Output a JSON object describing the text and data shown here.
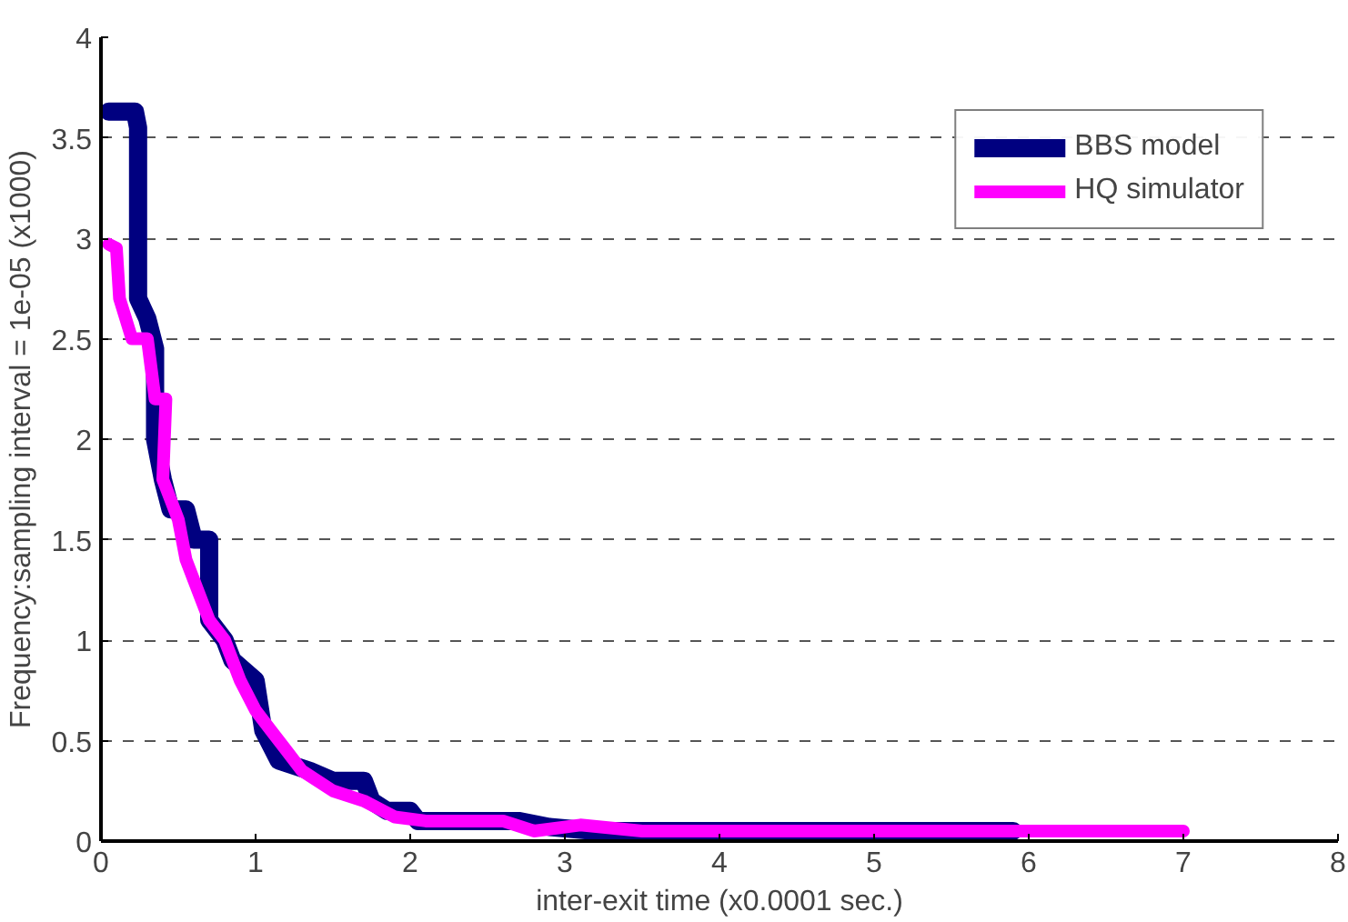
{
  "chart_data": {
    "type": "line",
    "xlabel": "inter-exit time (x0.0001 sec.)",
    "ylabel": "Frequency:sampling interval = 1e-05 (x1000)",
    "xlim": [
      0,
      8
    ],
    "xticks": [
      0,
      1,
      2,
      3,
      4,
      5,
      6,
      7,
      8
    ],
    "ylim": [
      0,
      4
    ],
    "yticks": [
      0,
      0.5,
      1,
      1.5,
      2,
      2.5,
      3,
      3.5,
      4
    ],
    "grid": "y",
    "legend": "top right",
    "line_style": "solid",
    "marker": "none",
    "series": [
      {
        "name": "BBS model",
        "color": "#000080",
        "x": [
          0.05,
          0.22,
          0.24,
          0.24,
          0.3,
          0.35,
          0.35,
          0.4,
          0.45,
          0.55,
          0.6,
          0.7,
          0.7,
          0.8,
          0.85,
          1.0,
          1.05,
          1.15,
          1.35,
          1.5,
          1.7,
          1.75,
          1.85,
          2.0,
          2.05,
          2.7,
          2.9,
          3.2,
          3.5,
          5.9
        ],
        "values": [
          3.63,
          3.63,
          3.55,
          2.7,
          2.6,
          2.45,
          2.0,
          1.8,
          1.65,
          1.65,
          1.5,
          1.5,
          1.1,
          1.0,
          0.9,
          0.8,
          0.55,
          0.4,
          0.35,
          0.3,
          0.3,
          0.2,
          0.15,
          0.15,
          0.1,
          0.1,
          0.07,
          0.05,
          0.05,
          0.05
        ]
      },
      {
        "name": "HQ simulator",
        "color": "#ff00ff",
        "x": [
          0.05,
          0.1,
          0.12,
          0.2,
          0.3,
          0.35,
          0.42,
          0.4,
          0.45,
          0.5,
          0.55,
          0.6,
          0.7,
          0.8,
          0.85,
          0.9,
          1.0,
          1.1,
          1.2,
          1.3,
          1.5,
          1.7,
          1.9,
          2.1,
          2.6,
          2.8,
          3.1,
          3.5,
          7.0
        ],
        "values": [
          2.97,
          2.95,
          2.7,
          2.5,
          2.5,
          2.2,
          2.2,
          1.8,
          1.7,
          1.6,
          1.4,
          1.3,
          1.1,
          1.0,
          0.9,
          0.8,
          0.65,
          0.55,
          0.45,
          0.35,
          0.25,
          0.2,
          0.12,
          0.1,
          0.1,
          0.05,
          0.08,
          0.05,
          0.05
        ]
      }
    ]
  }
}
